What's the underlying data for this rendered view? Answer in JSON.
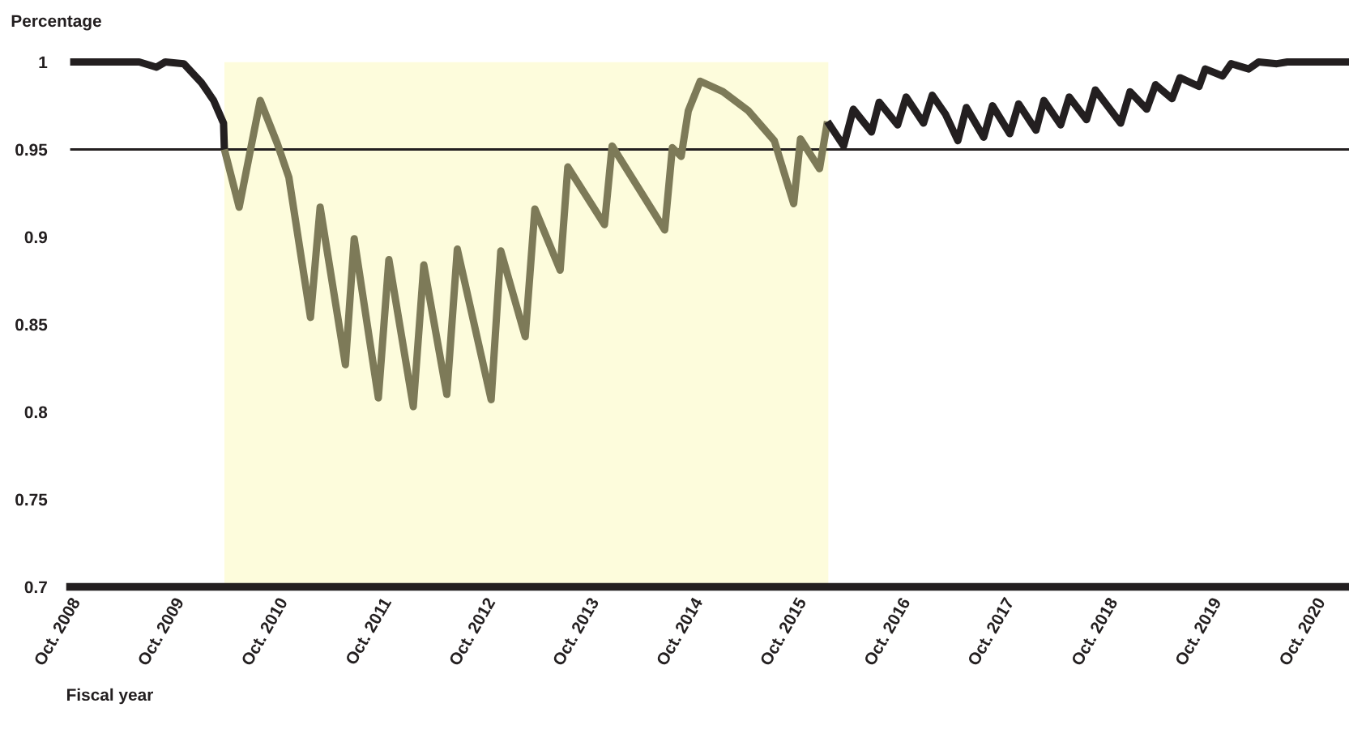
{
  "chart_data": {
    "type": "line",
    "ylabel": "Percentage",
    "xlabel": "Fiscal year",
    "xlim": [
      "2008-10-01",
      "2021-01-28"
    ],
    "ylim": [
      0.7,
      1
    ],
    "yticks": [
      0.7,
      0.75,
      0.8,
      0.85,
      0.9,
      0.95,
      1
    ],
    "xticks": [
      {
        "value": "2008-10-01",
        "label": "Oct. 2008"
      },
      {
        "value": "2009-10-01",
        "label": "Oct. 2009"
      },
      {
        "value": "2010-10-01",
        "label": "Oct. 2010"
      },
      {
        "value": "2011-10-01",
        "label": "Oct. 2011"
      },
      {
        "value": "2012-10-01",
        "label": "Oct. 2012"
      },
      {
        "value": "2013-10-01",
        "label": "Oct. 2013"
      },
      {
        "value": "2014-10-01",
        "label": "Oct. 2014"
      },
      {
        "value": "2015-10-01",
        "label": "Oct. 2015"
      },
      {
        "value": "2016-10-01",
        "label": "Oct. 2016"
      },
      {
        "value": "2017-10-01",
        "label": "Oct. 2017"
      },
      {
        "value": "2018-10-01",
        "label": "Oct. 2018"
      },
      {
        "value": "2019-10-01",
        "label": "Oct. 2019"
      },
      {
        "value": "2020-10-01",
        "label": "Oct. 2020"
      }
    ],
    "grid": false,
    "legend": false,
    "marker": "none",
    "line_style": "solid",
    "ref_lines": [
      {
        "axis": "y",
        "value": 0.95,
        "color": "#231f20",
        "line_style": "solid"
      }
    ],
    "bands": [
      {
        "axis": "x",
        "from": "2010-03-28",
        "to": "2016-01-22",
        "color": "#fdfcdc"
      }
    ],
    "series": [
      {
        "color": "#231f20",
        "x": [
          "2008-10-01",
          "2009-06-01",
          "2009-08-01",
          "2009-09-01",
          "2009-11-05",
          "2010-01-07",
          "2010-02-18",
          "2010-03-25",
          "2010-03-28"
        ],
        "values": [
          1.0,
          1.0,
          0.997,
          1.0,
          0.999,
          0.988,
          0.978,
          0.965,
          0.95
        ]
      },
      {
        "color": "#7d7a58",
        "x": [
          "2010-03-28",
          "2010-05-19",
          "2010-08-01",
          "2010-10-01",
          "2010-11-10",
          "2011-01-25",
          "2011-02-28",
          "2011-05-28",
          "2011-06-28",
          "2011-09-21",
          "2011-10-28",
          "2012-01-22",
          "2012-02-28",
          "2012-05-19",
          "2012-06-25",
          "2012-10-22",
          "2012-11-25",
          "2013-02-19",
          "2013-03-25",
          "2013-06-22",
          "2013-07-19",
          "2013-11-25",
          "2013-12-22",
          "2014-06-25",
          "2014-07-22",
          "2014-08-22",
          "2014-09-16",
          "2014-10-28",
          "2015-01-16",
          "2015-04-16",
          "2015-07-16",
          "2015-09-22",
          "2015-10-16",
          "2015-12-22",
          "2016-01-19"
        ],
        "values": [
          0.95,
          0.917,
          0.978,
          0.953,
          0.934,
          0.854,
          0.917,
          0.827,
          0.899,
          0.808,
          0.887,
          0.803,
          0.884,
          0.81,
          0.893,
          0.807,
          0.892,
          0.843,
          0.916,
          0.881,
          0.94,
          0.907,
          0.952,
          0.904,
          0.951,
          0.946,
          0.972,
          0.989,
          0.983,
          0.972,
          0.955,
          0.919,
          0.956,
          0.939,
          0.966
        ]
      },
      {
        "color": "#231f20",
        "x": [
          "2016-01-19",
          "2016-03-16",
          "2016-04-19",
          "2016-06-22",
          "2016-07-19",
          "2016-09-22",
          "2016-10-22",
          "2016-12-22",
          "2017-01-22",
          "2017-03-10",
          "2017-04-22",
          "2017-05-22",
          "2017-07-22",
          "2017-08-22",
          "2017-10-22",
          "2017-11-22",
          "2018-01-22",
          "2018-02-19",
          "2018-04-19",
          "2018-05-19",
          "2018-07-19",
          "2018-08-19",
          "2018-11-16",
          "2018-12-19",
          "2019-02-16",
          "2019-03-19",
          "2019-05-16",
          "2019-06-13",
          "2019-08-19",
          "2019-09-10",
          "2019-11-10",
          "2019-12-10",
          "2020-02-10",
          "2020-03-16",
          "2020-05-19",
          "2020-06-25",
          "2020-08-25",
          "2021-01-28"
        ],
        "values": [
          0.966,
          0.952,
          0.973,
          0.96,
          0.977,
          0.964,
          0.98,
          0.965,
          0.981,
          0.97,
          0.955,
          0.974,
          0.957,
          0.975,
          0.959,
          0.976,
          0.961,
          0.978,
          0.964,
          0.98,
          0.967,
          0.984,
          0.965,
          0.983,
          0.973,
          0.987,
          0.979,
          0.991,
          0.986,
          0.996,
          0.992,
          0.999,
          0.996,
          1.0,
          0.999,
          1.0,
          1.0,
          1.0
        ]
      }
    ]
  }
}
